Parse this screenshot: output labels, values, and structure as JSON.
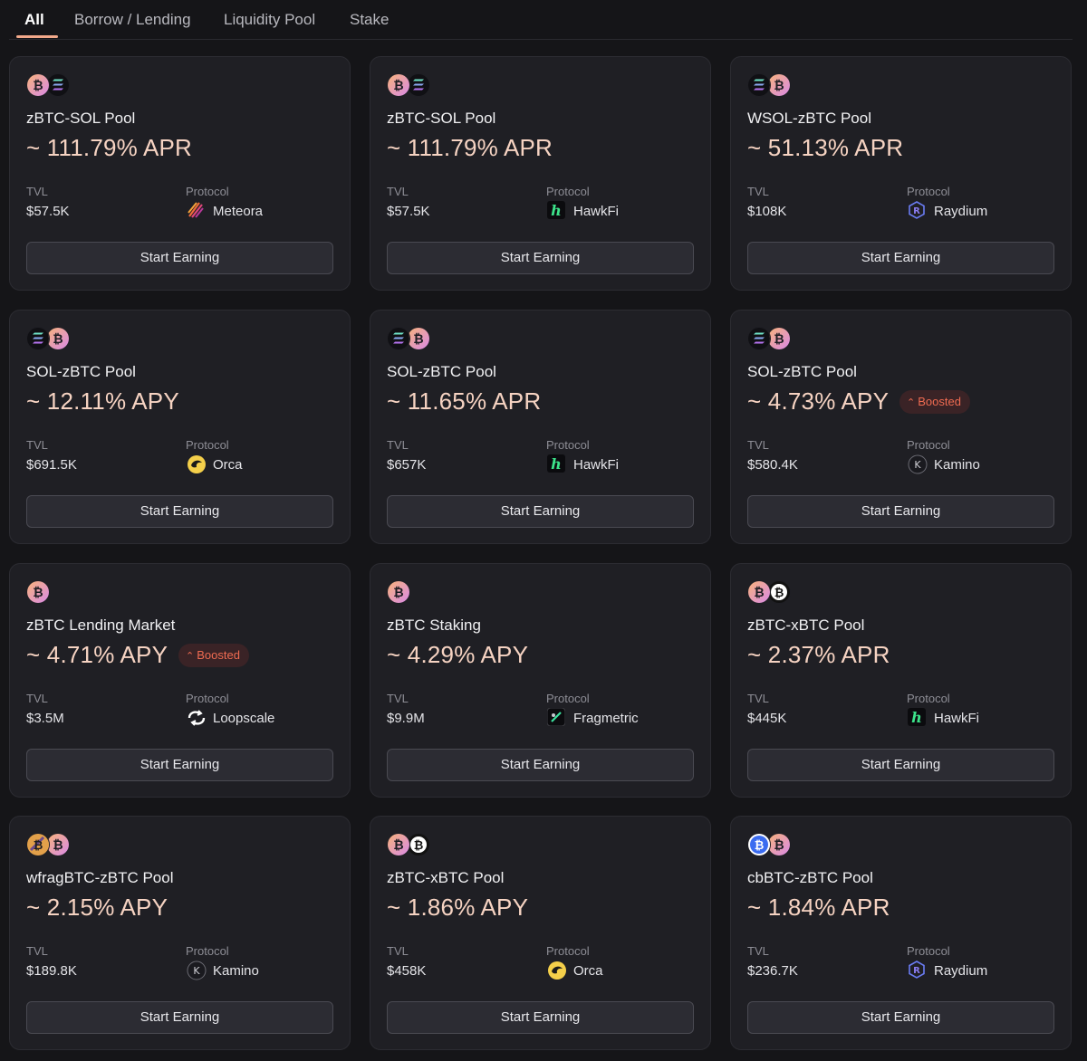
{
  "tabs": [
    {
      "label": "All",
      "active": true
    },
    {
      "label": "Borrow / Lending",
      "active": false
    },
    {
      "label": "Liquidity Pool",
      "active": false
    },
    {
      "label": "Stake",
      "active": false
    }
  ],
  "colors": {
    "accent": "#f2a98b",
    "apr_text": "#f6d3c2",
    "boosted_text": "#ef6b51",
    "card_bg": "#1f1f24",
    "page_bg": "#151518"
  },
  "labels": {
    "tvl": "TVL",
    "protocol": "Protocol",
    "cta": "Start Earning"
  },
  "cards": [
    {
      "tokens": [
        "zbtc-icon",
        "sol-icon"
      ],
      "name": "zBTC-SOL Pool",
      "rate": "~ 111.79% APR",
      "boosted": null,
      "tvl": "$57.5K",
      "protocol": "Meteora",
      "protocol_icon": "meteora-icon"
    },
    {
      "tokens": [
        "zbtc-icon",
        "sol-icon"
      ],
      "name": "zBTC-SOL Pool",
      "rate": "~ 111.79% APR",
      "boosted": null,
      "tvl": "$57.5K",
      "protocol": "HawkFi",
      "protocol_icon": "hawkfi-icon"
    },
    {
      "tokens": [
        "sol-icon",
        "zbtc-icon"
      ],
      "name": "WSOL-zBTC Pool",
      "rate": "~ 51.13% APR",
      "boosted": null,
      "tvl": "$108K",
      "protocol": "Raydium",
      "protocol_icon": "raydium-icon"
    },
    {
      "tokens": [
        "sol-icon",
        "zbtc-icon"
      ],
      "name": "SOL-zBTC Pool",
      "rate": "~ 12.11% APY",
      "boosted": null,
      "tvl": "$691.5K",
      "protocol": "Orca",
      "protocol_icon": "orca-icon"
    },
    {
      "tokens": [
        "sol-icon",
        "zbtc-icon"
      ],
      "name": "SOL-zBTC Pool",
      "rate": "~ 11.65% APR",
      "boosted": null,
      "tvl": "$657K",
      "protocol": "HawkFi",
      "protocol_icon": "hawkfi-icon"
    },
    {
      "tokens": [
        "sol-icon",
        "zbtc-icon"
      ],
      "name": "SOL-zBTC Pool",
      "rate": "~ 4.73% APY",
      "boosted": "Boosted",
      "tvl": "$580.4K",
      "protocol": "Kamino",
      "protocol_icon": "kamino-icon"
    },
    {
      "tokens": [
        "zbtc-icon"
      ],
      "name": "zBTC Lending Market",
      "rate": "~ 4.71% APY",
      "boosted": "Boosted",
      "tvl": "$3.5M",
      "protocol": "Loopscale",
      "protocol_icon": "loopscale-icon"
    },
    {
      "tokens": [
        "zbtc-icon"
      ],
      "name": "zBTC Staking",
      "rate": "~ 4.29% APY",
      "boosted": null,
      "tvl": "$9.9M",
      "protocol": "Fragmetric",
      "protocol_icon": "fragmetric-icon"
    },
    {
      "tokens": [
        "zbtc-icon",
        "xbtc-icon"
      ],
      "name": "zBTC-xBTC Pool",
      "rate": "~ 2.37% APR",
      "boosted": null,
      "tvl": "$445K",
      "protocol": "HawkFi",
      "protocol_icon": "hawkfi-icon"
    },
    {
      "tokens": [
        "wfragbtc-icon",
        "zbtc-icon"
      ],
      "name": "wfragBTC-zBTC Pool",
      "rate": "~ 2.15% APY",
      "boosted": null,
      "tvl": "$189.8K",
      "protocol": "Kamino",
      "protocol_icon": "kamino-icon"
    },
    {
      "tokens": [
        "zbtc-icon",
        "xbtc-icon"
      ],
      "name": "zBTC-xBTC Pool",
      "rate": "~ 1.86% APY",
      "boosted": null,
      "tvl": "$458K",
      "protocol": "Orca",
      "protocol_icon": "orca-icon"
    },
    {
      "tokens": [
        "cbbtc-icon",
        "zbtc-icon"
      ],
      "name": "cbBTC-zBTC Pool",
      "rate": "~ 1.84% APR",
      "boosted": null,
      "tvl": "$236.7K",
      "protocol": "Raydium",
      "protocol_icon": "raydium-icon"
    }
  ]
}
